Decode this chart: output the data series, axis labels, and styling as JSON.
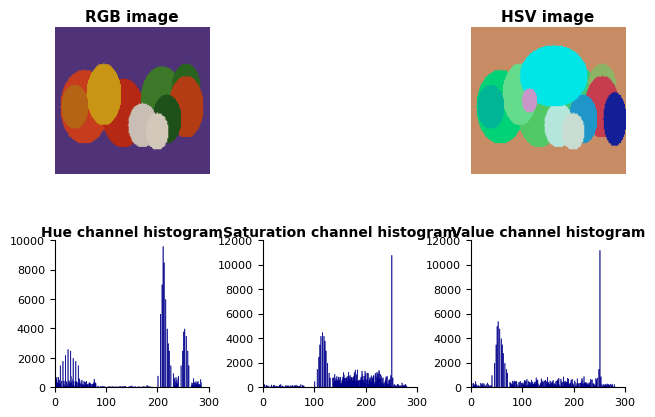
{
  "title_rgb": "RGB image",
  "title_hsv": "HSV image",
  "hist_titles": [
    "Hue channel histogram",
    "Saturation channel histogram",
    "Value channel histogram"
  ],
  "hist_color": "#00008B",
  "hue_ylim": [
    0,
    10000
  ],
  "sat_ylim": [
    0,
    12000
  ],
  "val_ylim": [
    0,
    12000
  ],
  "xlim": [
    0,
    300
  ],
  "xticks": [
    0,
    100,
    200,
    300
  ],
  "background": "#ffffff",
  "title_fontsize": 11,
  "hist_title_fontsize": 10
}
